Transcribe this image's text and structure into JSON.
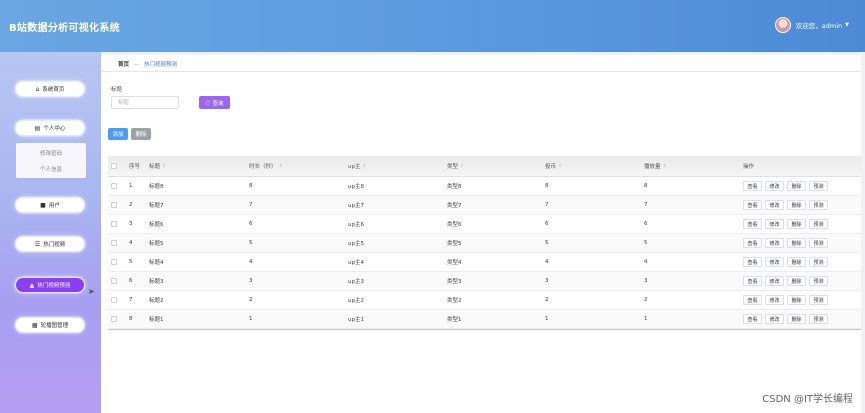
{
  "header": {
    "title": "B站数据分析可视化系统",
    "user_text": "欢迎您，admin",
    "caret": "▼"
  },
  "sidebar": {
    "items": [
      {
        "label": "系统首页",
        "icon": "home-icon",
        "glyph": "⌂"
      },
      {
        "label": "个人中心",
        "icon": "calendar-icon",
        "glyph": "▤"
      },
      {
        "label": "用户",
        "icon": "book-icon",
        "glyph": "■"
      },
      {
        "label": "热门视频",
        "icon": "list-icon",
        "glyph": "☰"
      },
      {
        "label": "热门视频预测",
        "icon": "user-icon",
        "glyph": "▲"
      },
      {
        "label": "轮播图管理",
        "icon": "grid-icon",
        "glyph": "▦"
      }
    ],
    "submenu": [
      "修改密码",
      "个人信息"
    ],
    "active_color": "#8a3ff0"
  },
  "breadcrumb": {
    "home": "首页",
    "separator": "—",
    "current": "热门视频预测"
  },
  "search": {
    "label": "标题",
    "placeholder": "标题",
    "button": "查询",
    "button_color": "#9b67f0"
  },
  "actions": {
    "add": "添加",
    "delete": "删除"
  },
  "table": {
    "columns": [
      "序号",
      "标题",
      "时长（秒）",
      "up主",
      "类型",
      "投币",
      "播放量",
      "操作"
    ],
    "row_actions": [
      "查看",
      "修改",
      "删除",
      "预测"
    ],
    "rows": [
      [
        "1",
        "标题8",
        "8",
        "up主8",
        "类型8",
        "8",
        "8"
      ],
      [
        "2",
        "标题7",
        "7",
        "up主7",
        "类型7",
        "7",
        "7"
      ],
      [
        "3",
        "标题6",
        "6",
        "up主6",
        "类型6",
        "6",
        "6"
      ],
      [
        "4",
        "标题5",
        "5",
        "up主5",
        "类型5",
        "5",
        "5"
      ],
      [
        "5",
        "标题4",
        "4",
        "up主4",
        "类型4",
        "4",
        "4"
      ],
      [
        "6",
        "标题3",
        "3",
        "up主3",
        "类型3",
        "3",
        "3"
      ],
      [
        "7",
        "标题2",
        "2",
        "up主2",
        "类型2",
        "2",
        "2"
      ],
      [
        "8",
        "标题1",
        "1",
        "up主1",
        "类型1",
        "1",
        "1"
      ]
    ]
  },
  "watermark": "CSDN @IT学长编程"
}
